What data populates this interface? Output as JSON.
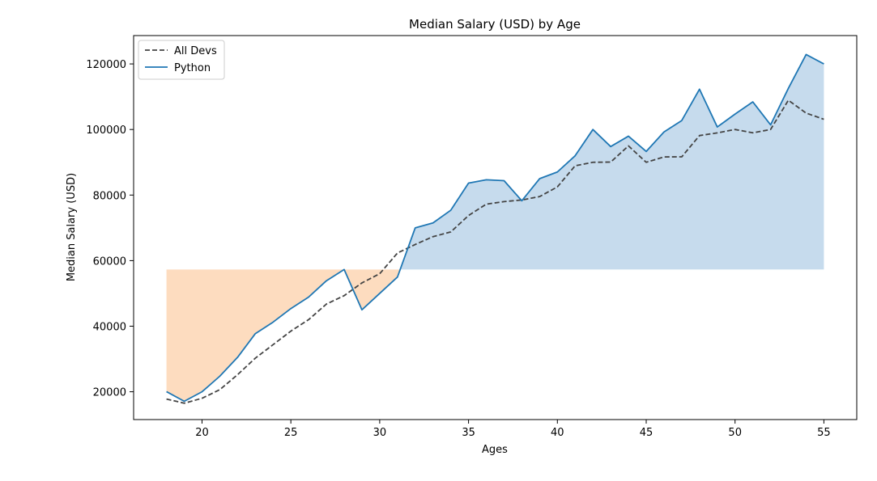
{
  "chart_data": {
    "type": "line",
    "title": "Median Salary (USD) by Age",
    "xlabel": "Ages",
    "ylabel": "Median Salary (USD)",
    "xlim": [
      16.15,
      56.85
    ],
    "ylim": [
      11520,
      128650
    ],
    "xticks": [
      20,
      25,
      30,
      35,
      40,
      45,
      50,
      55
    ],
    "yticks": [
      20000,
      40000,
      60000,
      80000,
      100000,
      120000
    ],
    "legend_position": "upper-left",
    "fill_between": {
      "baseline": 57287,
      "above_color": "#c6dbed",
      "below_color": "#fddcbf"
    },
    "x": [
      18,
      19,
      20,
      21,
      22,
      23,
      24,
      25,
      26,
      27,
      28,
      29,
      30,
      31,
      32,
      33,
      34,
      35,
      36,
      37,
      38,
      39,
      40,
      41,
      42,
      43,
      44,
      45,
      46,
      47,
      48,
      49,
      50,
      51,
      52,
      53,
      54,
      55
    ],
    "series": [
      {
        "name": "All Devs",
        "color": "#444444",
        "style": "dashed",
        "values": [
          17784,
          16500,
          18012,
          20628,
          25206,
          30252,
          34368,
          38496,
          42000,
          46752,
          49320,
          53200,
          56000,
          62316,
          64928,
          67317,
          68748,
          73752,
          77232,
          78000,
          78508,
          79536,
          82488,
          88935,
          90000,
          90056,
          95000,
          90000,
          91633,
          91660,
          98150,
          98964,
          100000,
          98988,
          100000,
          108923,
          105000,
          103117
        ]
      },
      {
        "name": "Python",
        "color": "#1f77b4",
        "style": "solid",
        "values": [
          20046,
          17100,
          20000,
          24744,
          30500,
          37732,
          41247,
          45372,
          48876,
          53850,
          57287,
          45000,
          50000,
          55000,
          70000,
          71496,
          75370,
          83640,
          84666,
          84392,
          78254,
          85000,
          87038,
          91991,
          100000,
          94796,
          97962,
          93302,
          99240,
          102736,
          112285,
          100771,
          104708,
          108423,
          101407,
          112542,
          122870,
          120000
        ]
      }
    ]
  }
}
